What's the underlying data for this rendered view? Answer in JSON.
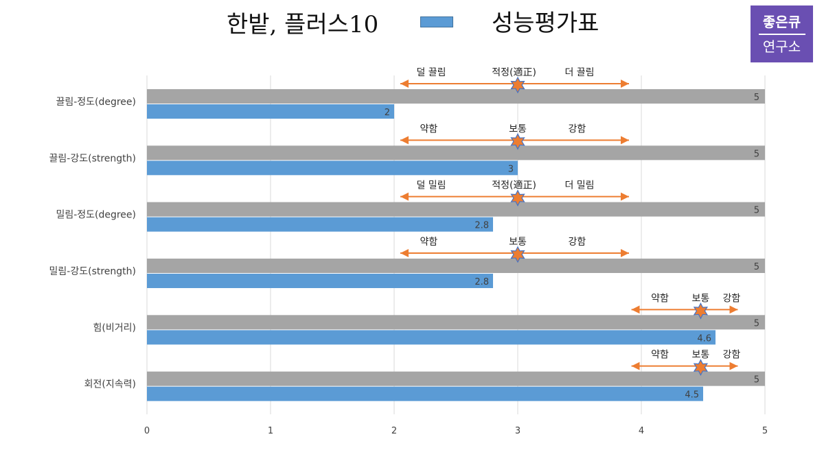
{
  "header": {
    "title": "한밭, 플러스10",
    "legend_label": "성능평가표"
  },
  "logo": {
    "line1": "좋은큐",
    "line2": "연구소"
  },
  "colors": {
    "reference_bar": "#a5a5a5",
    "value_bar": "#5b9bd5",
    "arrow": "#ed7d31",
    "star_fill": "#ed7d31",
    "star_stroke": "#4472c4",
    "grid": "#d9d9d9",
    "text": "#404040"
  },
  "chart_data": {
    "type": "bar",
    "orientation": "horizontal",
    "categories": [
      "끌림-정도(degree)",
      "끌림-강도(strength)",
      "밀림-정도(degree)",
      "밀림-강도(strength)",
      "힘(비거리)",
      "회전(지속력)"
    ],
    "series": [
      {
        "values": [
          5,
          5,
          5,
          5,
          5,
          5
        ],
        "data_labels": [
          "5",
          "5",
          "5",
          "5",
          "5",
          "5"
        ]
      },
      {
        "name": "성능평가표",
        "values": [
          2,
          3,
          2.8,
          2.8,
          4.6,
          4.5
        ],
        "data_labels": [
          "2",
          "3",
          "2.8",
          "2.8",
          "4.6",
          "4.5"
        ]
      }
    ],
    "xlim": [
      0,
      5
    ],
    "x_ticks": [
      "0",
      "1",
      "2",
      "3",
      "4",
      "5"
    ],
    "grid": true,
    "legend_position": "top",
    "annotations": [
      {
        "category": "끌림-정도(degree)",
        "arrow_from": 2.05,
        "arrow_to": 3.9,
        "marker": 3,
        "labels": [
          {
            "text": "덜 끌림",
            "at": 2.3
          },
          {
            "text": "적정(適正)",
            "at": 2.97
          },
          {
            "text": "더 끌림",
            "at": 3.5
          }
        ]
      },
      {
        "category": "끌림-강도(strength)",
        "arrow_from": 2.05,
        "arrow_to": 3.9,
        "marker": 3,
        "labels": [
          {
            "text": "약함",
            "at": 2.28
          },
          {
            "text": "보통",
            "at": 3.0
          },
          {
            "text": "강함",
            "at": 3.48
          }
        ]
      },
      {
        "category": "밀림-정도(degree)",
        "arrow_from": 2.05,
        "arrow_to": 3.9,
        "marker": 3,
        "labels": [
          {
            "text": "덜 밀림",
            "at": 2.3
          },
          {
            "text": "적정(適正)",
            "at": 2.97
          },
          {
            "text": "더 밀림",
            "at": 3.5
          }
        ]
      },
      {
        "category": "밀림-강도(strength)",
        "arrow_from": 2.05,
        "arrow_to": 3.9,
        "marker": 3,
        "labels": [
          {
            "text": "약함",
            "at": 2.28
          },
          {
            "text": "보통",
            "at": 3.0
          },
          {
            "text": "강함",
            "at": 3.48
          }
        ]
      },
      {
        "category": "힘(비거리)",
        "arrow_from": 3.92,
        "arrow_to": 4.78,
        "marker": 4.48,
        "labels": [
          {
            "text": "약함",
            "at": 4.15
          },
          {
            "text": "보통",
            "at": 4.48
          },
          {
            "text": "강함",
            "at": 4.73
          }
        ]
      },
      {
        "category": "회전(지속력)",
        "arrow_from": 3.92,
        "arrow_to": 4.78,
        "marker": 4.48,
        "labels": [
          {
            "text": "약함",
            "at": 4.15
          },
          {
            "text": "보통",
            "at": 4.48
          },
          {
            "text": "강함",
            "at": 4.73
          }
        ]
      }
    ]
  }
}
